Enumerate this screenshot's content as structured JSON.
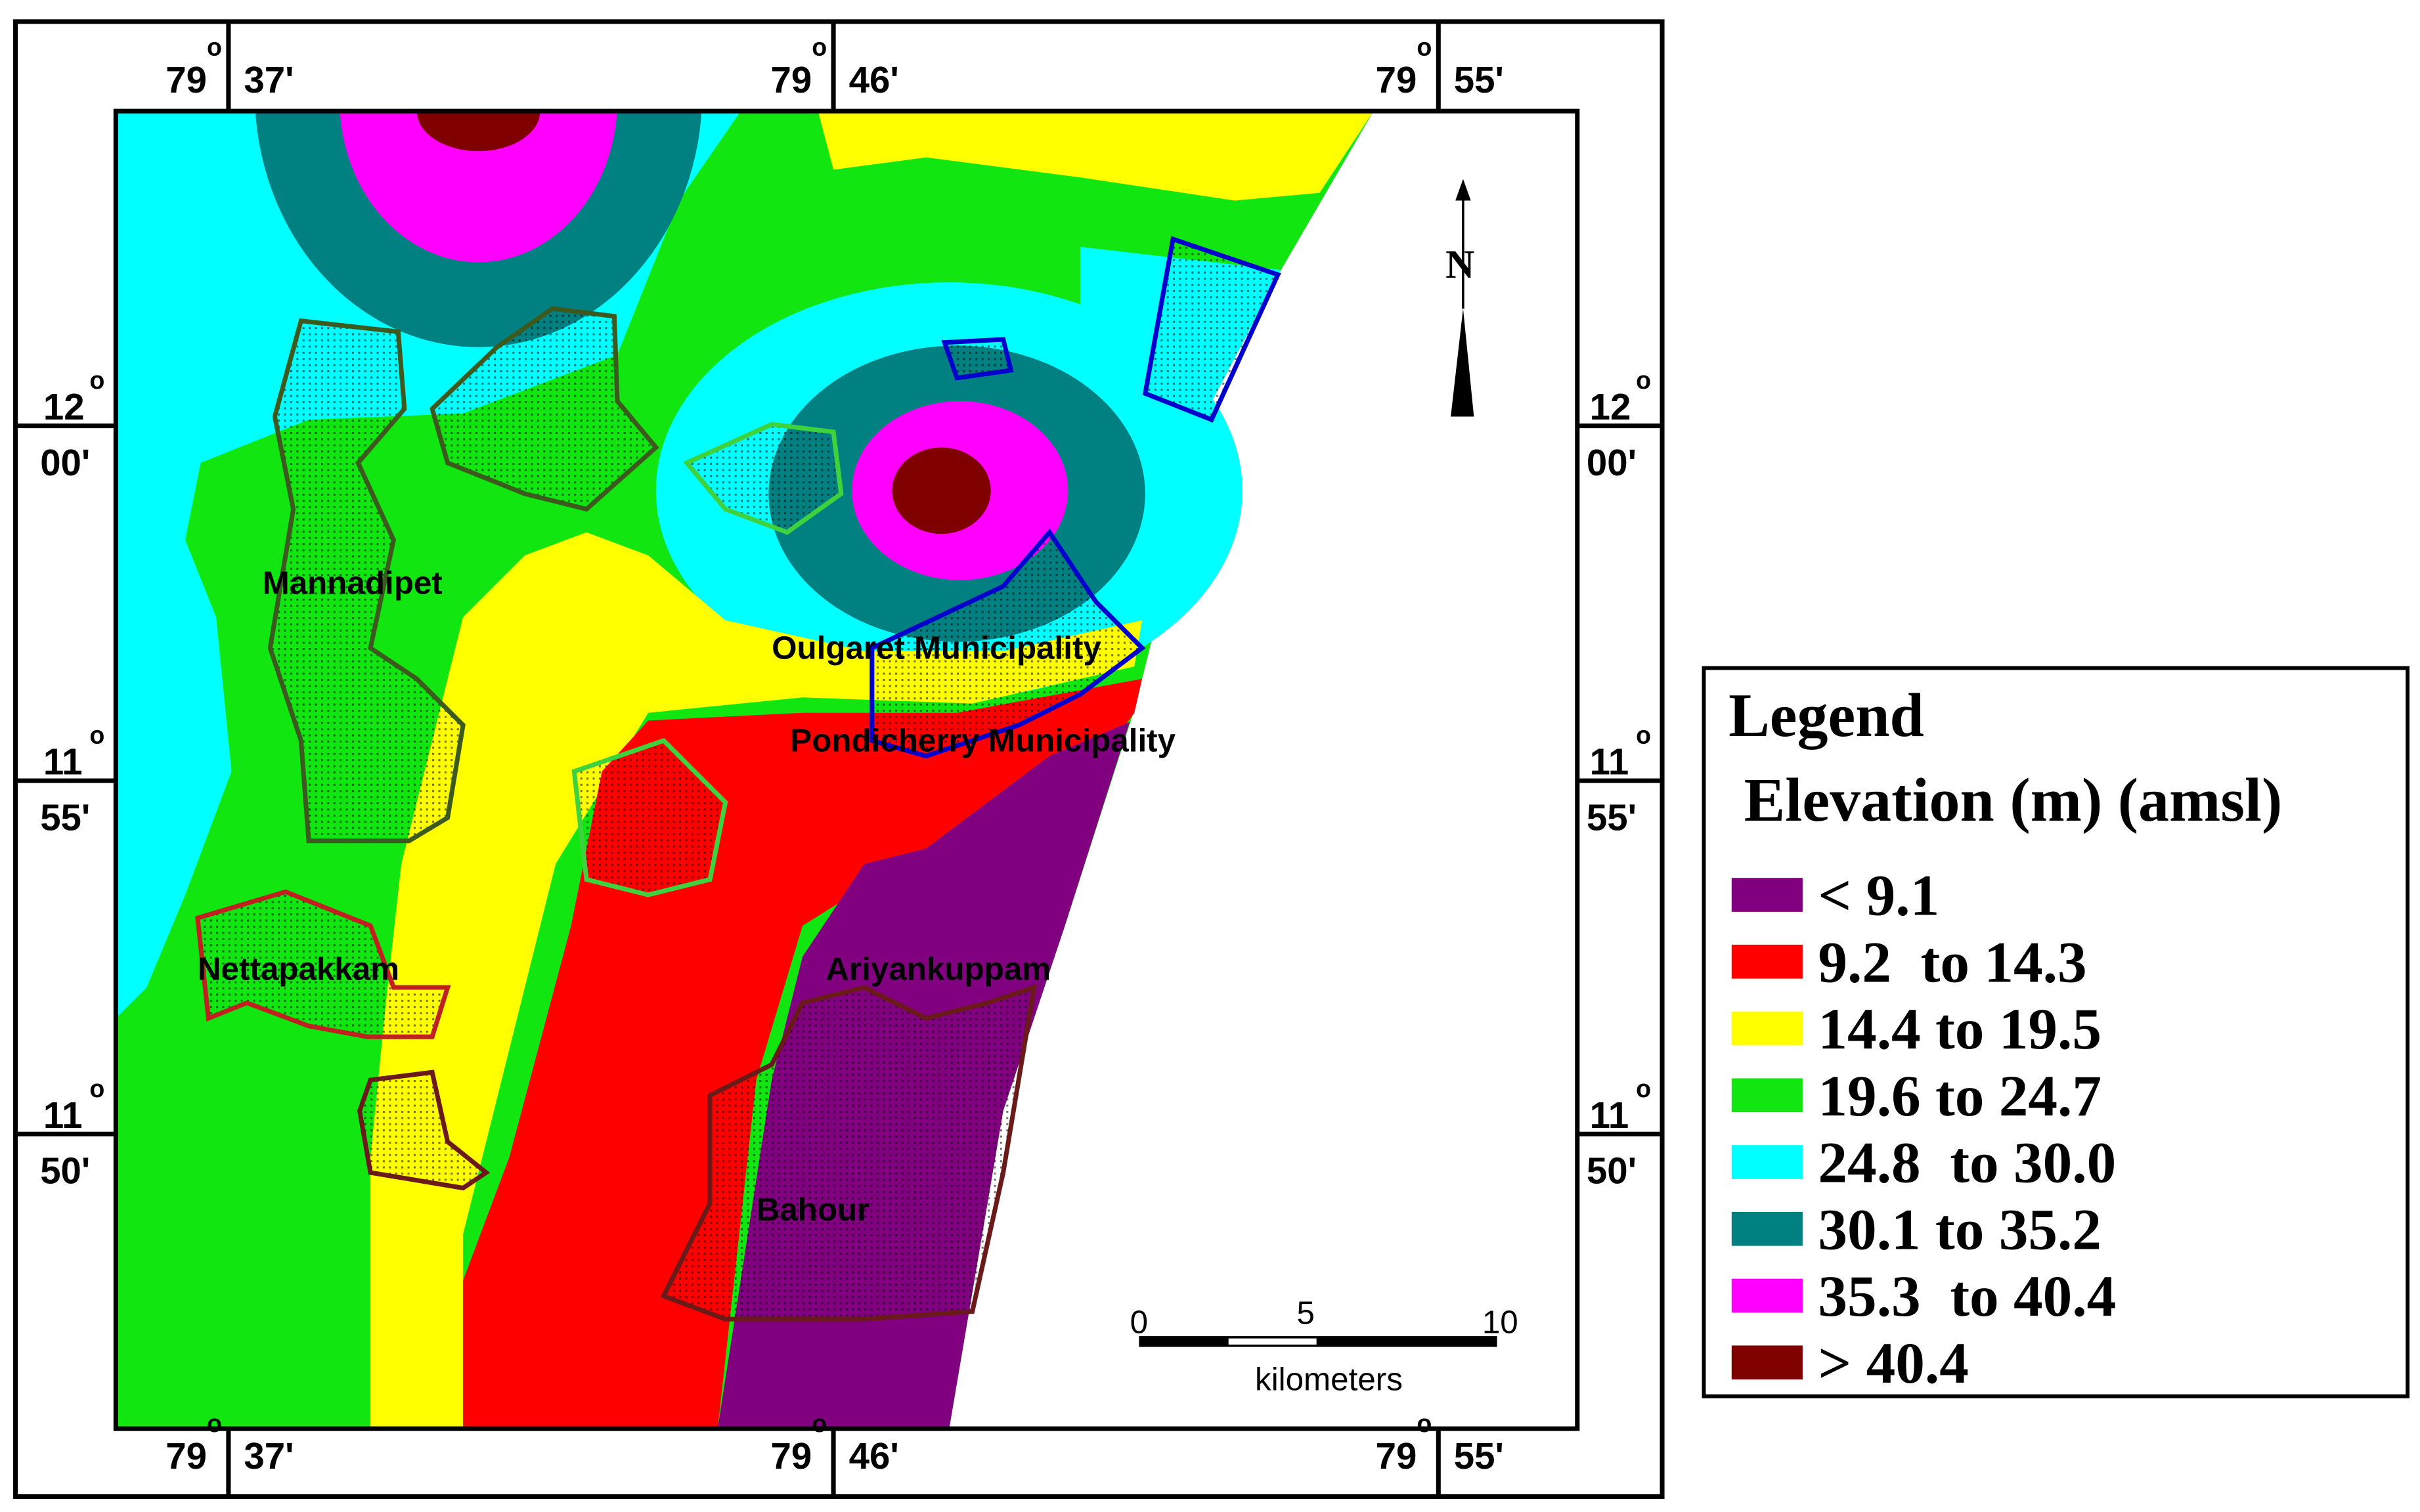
{
  "map": {
    "top_labels": [
      {
        "deg": "79",
        "mark": "o",
        "min": "37'"
      },
      {
        "deg": "79",
        "mark": "o",
        "min": "46'"
      },
      {
        "deg": "79",
        "mark": "o",
        "min": "55'"
      }
    ],
    "bottom_labels": [
      {
        "deg": "79",
        "mark": "o",
        "min": "37'"
      },
      {
        "deg": "79",
        "mark": "o",
        "min": "46'"
      },
      {
        "deg": "79",
        "mark": "o",
        "min": "55'"
      }
    ],
    "left_labels": [
      {
        "deg": "12",
        "mark": "o",
        "min": "00'"
      },
      {
        "deg": "11",
        "mark": "o",
        "min": "55'"
      },
      {
        "deg": "11",
        "mark": "o",
        "min": "50'"
      }
    ],
    "right_labels": [
      {
        "deg": "12",
        "mark": "o",
        "min": "00'"
      },
      {
        "deg": "11",
        "mark": "o",
        "min": "55'"
      },
      {
        "deg": "11",
        "mark": "o",
        "min": "50'"
      }
    ],
    "places": [
      "Mannadipet",
      "Oulgaret Municipality",
      "Pondicherry Municipality",
      "Nettapakkam",
      "Ariyankuppam",
      "Bahour"
    ],
    "north": "N",
    "scale_bar": {
      "ticks": [
        "0",
        "5",
        "10"
      ],
      "unit": "kilometers"
    }
  },
  "legend": {
    "title": "Legend",
    "subtitle": "Elevation (m) (amsl)",
    "classes": [
      {
        "label": "< 9.1",
        "color": "#800080"
      },
      {
        "label": "9.2  to 14.3",
        "color": "#ff0000"
      },
      {
        "label": "14.4 to 19.5",
        "color": "#ffff00"
      },
      {
        "label": "19.6 to 24.7",
        "color": "#11e611"
      },
      {
        "label": "24.8  to 30.0",
        "color": "#00ffff"
      },
      {
        "label": "30.1 to 35.2",
        "color": "#008080"
      },
      {
        "label": "35.3  to 40.4",
        "color": "#ff00ff"
      },
      {
        "label": "> 40.4",
        "color": "#800000"
      }
    ]
  }
}
